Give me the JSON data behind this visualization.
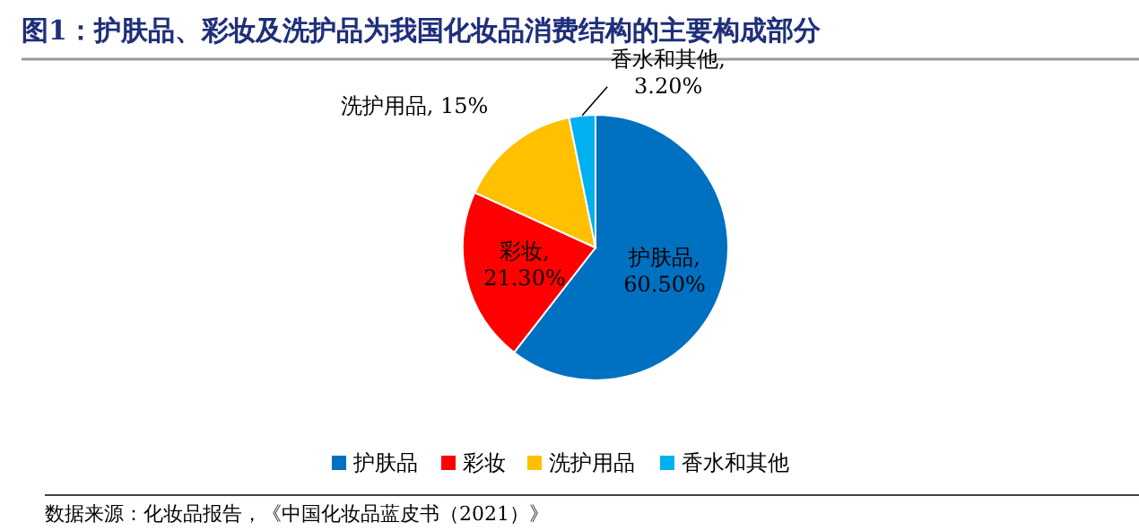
{
  "chart_data": {
    "type": "pie",
    "title": "图1：护肤品、彩妆及洗护品为我国化妆品消费结构的主要构成部分",
    "categories": [
      "护肤品",
      "彩妆",
      "洗护用品",
      "香水和其他"
    ],
    "values": [
      60.5,
      21.3,
      15,
      3.2
    ],
    "value_labels": [
      "护肤品,\n60.50%",
      "彩妆,\n21.30%",
      "洗护用品, 15%",
      "香水和其他,\n3.20%"
    ],
    "colors": [
      "#0070c0",
      "#ff0000",
      "#ffc000",
      "#00b0f0"
    ],
    "legend": "bottom",
    "annotations": [
      "数据来源：化妆品报告，《中国化妆品蓝皮书（2021）》"
    ]
  }
}
